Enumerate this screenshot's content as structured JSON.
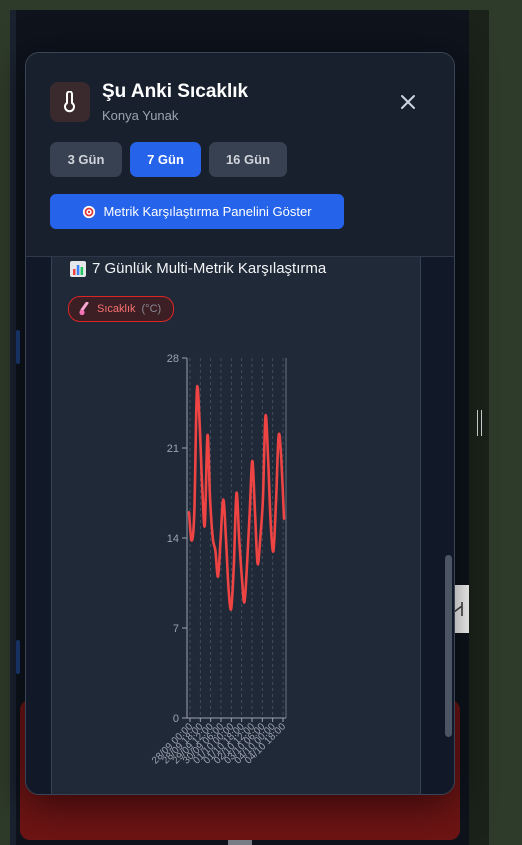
{
  "modal": {
    "title": "Şu Anki Sıcaklık",
    "subtitle": "Konya Yunak",
    "range_buttons": [
      {
        "label": "3 Gün",
        "active": false
      },
      {
        "label": "7 Gün",
        "active": true
      },
      {
        "label": "16 Gün",
        "active": false
      }
    ],
    "compare_button_label": "Metrik Karşılaştırma Panelini Göster"
  },
  "chart_section": {
    "title": "7 Günlük Multi-Metrik Karşılaştırma",
    "metric_chip": {
      "label": "Sıcaklık",
      "unit": "(°C)"
    }
  },
  "colors": {
    "accent": "#2563eb",
    "series": "#ef4444",
    "modal_bg": "#1f2736"
  },
  "icons": {
    "header": "thermometer-icon",
    "close": "close-icon",
    "compare": "target-icon",
    "chart_title": "bar-chart-icon",
    "chip": "thermometer-icon"
  },
  "chart_data": {
    "type": "line",
    "title": "",
    "xlabel": "",
    "ylabel": "",
    "ylim": [
      0,
      28
    ],
    "yticks": [
      0,
      7,
      14,
      21,
      28
    ],
    "grid": "vertical dashed",
    "x_tick_labels": [
      "28/09 00:00",
      "28/09 18:00",
      "29/09 12:00",
      "30/09 06:00",
      "01/10 00:00",
      "01/10 18:00",
      "02/10 12:00",
      "03/10 06:00",
      "04/10 00:00",
      "04/10 18:00"
    ],
    "series": [
      {
        "values": [
          16,
          13.8,
          16,
          25.5,
          23,
          18,
          15,
          22,
          17,
          14,
          13,
          11,
          14,
          17,
          14,
          10,
          8.5,
          12,
          17.5,
          14,
          11,
          9,
          12,
          16,
          20,
          16,
          12,
          14,
          17,
          23.5,
          20,
          15,
          13,
          17,
          22,
          20,
          15.5
        ]
      }
    ]
  }
}
